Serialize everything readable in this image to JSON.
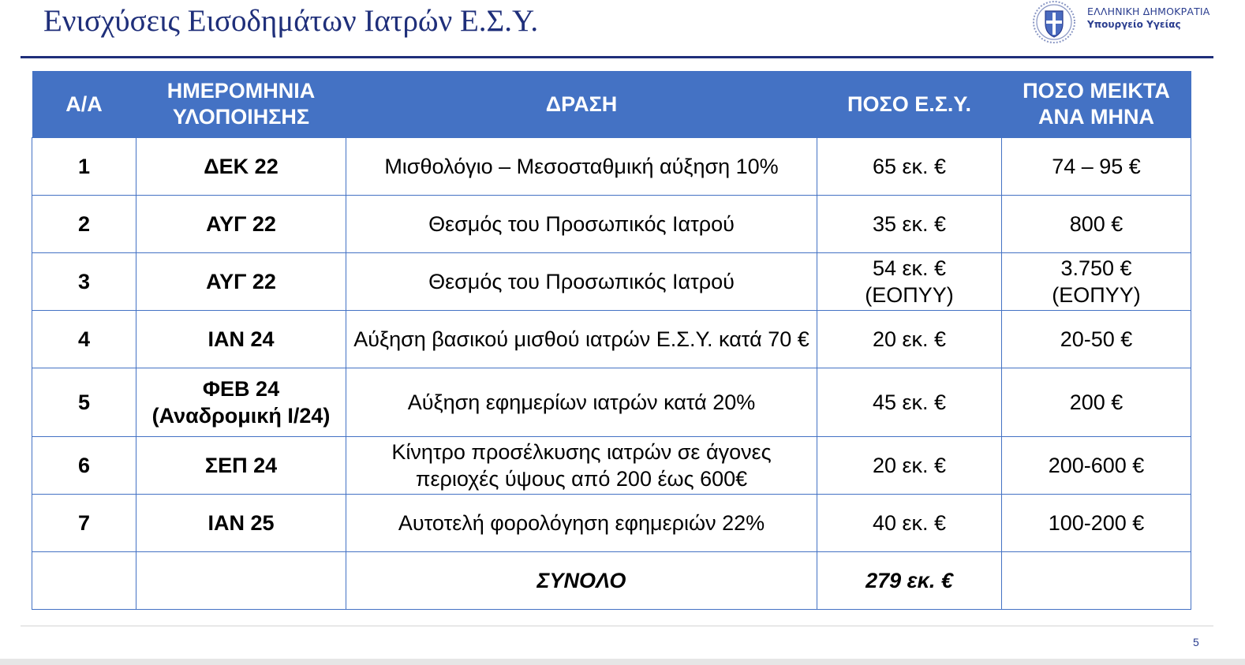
{
  "slide": {
    "title": "Ενισχύσεις Εισοδημάτων Ιατρών Ε.Σ.Υ.",
    "page_number": "5"
  },
  "org": {
    "line1": "ΕΛΛΗΝΙΚΗ ΔΗΜΟΚΡΑΤΙΑ",
    "line2": "Υπουργείο Υγείας",
    "emblem_icon": "greek-coat-of-arms-icon"
  },
  "colors": {
    "header_bg": "#4472c4",
    "title": "#1f2f7a",
    "org_text": "#2a3d8f"
  },
  "table": {
    "headers": {
      "aa": "Α/Α",
      "date": "ΗΜΕΡΟΜΗΝΙΑ ΥΛΟΠΟΙΗΣΗΣ",
      "action": "ΔΡΑΣΗ",
      "amount_esy": "ΠΟΣΟ Ε.Σ.Υ.",
      "gross_monthly": "ΠΟΣΟ ΜΕΙΚΤΑ ΑΝΑ ΜΗΝΑ"
    },
    "rows": [
      {
        "aa": "1",
        "date": "ΔΕΚ 22",
        "action": "Μισθολόγιο – Μεσοσταθμική αύξηση 10%",
        "amount_esy": "65 εκ. €",
        "gross_monthly": "74 – 95 €"
      },
      {
        "aa": "2",
        "date": "ΑΥΓ 22",
        "action": "Θεσμός του Προσωπικός Ιατρού",
        "amount_esy": "35 εκ. €",
        "gross_monthly": "800 €"
      },
      {
        "aa": "3",
        "date": "ΑΥΓ 22",
        "action": "Θεσμός του Προσωπικός Ιατρού",
        "amount_esy": "54 εκ. € (ΕΟΠΥΥ)",
        "gross_monthly": "3.750 € (ΕΟΠΥΥ)"
      },
      {
        "aa": "4",
        "date": "ΙΑΝ 24",
        "action": "Αύξηση βασικού μισθού ιατρών Ε.Σ.Υ. κατά 70 €",
        "amount_esy": "20 εκ. €",
        "gross_monthly": "20-50 €"
      },
      {
        "aa": "5",
        "date": "ΦΕΒ 24 (Αναδρομική Ι/24)",
        "action": "Αύξηση εφημερίων ιατρών κατά 20%",
        "amount_esy": "45 εκ. €",
        "gross_monthly": "200 €"
      },
      {
        "aa": "6",
        "date": "ΣΕΠ 24",
        "action": "Κίνητρο προσέλκυσης ιατρών σε άγονες περιοχές ύψους από 200 έως 600€",
        "amount_esy": "20 εκ. €",
        "gross_monthly": "200-600 €"
      },
      {
        "aa": "7",
        "date": "ΙΑΝ 25",
        "action": "Αυτοτελή φορολόγηση εφημεριών 22%",
        "amount_esy": "40 εκ. €",
        "gross_monthly": "100-200 €"
      }
    ],
    "total": {
      "aa": "",
      "date": "",
      "label": "ΣΥΝΟΛΟ",
      "amount_esy": "279 εκ. €",
      "gross_monthly": ""
    }
  }
}
